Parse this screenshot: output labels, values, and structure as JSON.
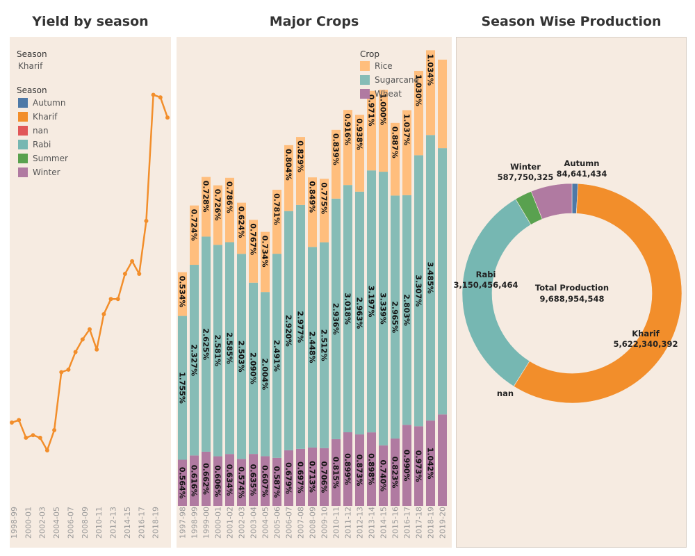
{
  "titles": {
    "yield": "Yield by season",
    "crops": "Major Crops",
    "season": "Season Wise Production"
  },
  "yield_filter": {
    "label": "Season",
    "value": "Kharif"
  },
  "season_legend": {
    "title": "Season",
    "items": [
      {
        "label": "Autumn",
        "color": "#4e79a7"
      },
      {
        "label": "Kharif",
        "color": "#f28e2b"
      },
      {
        "label": "nan",
        "color": "#e15759"
      },
      {
        "label": "Rabi",
        "color": "#76b7b2"
      },
      {
        "label": "Summer",
        "color": "#59a14f"
      },
      {
        "label": "Winter",
        "color": "#b07aa1"
      }
    ]
  },
  "crop_legend": {
    "title": "Crop",
    "items": [
      {
        "label": "Rice",
        "color": "#ffbe7d"
      },
      {
        "label": "Sugarcane",
        "color": "#86bcb6"
      },
      {
        "label": "Wheat",
        "color": "#b07aa1"
      }
    ]
  },
  "donut_center": {
    "label": "Total Production",
    "value": "9,688,954,548"
  },
  "chart_data": [
    {
      "type": "line",
      "title": "Yield by season",
      "series_name": "Kharif",
      "color": "#f28e2b",
      "x_ticks": [
        "1998-99",
        "2000-01",
        "2002-03",
        "2004-05",
        "2006-07",
        "2008-09",
        "2010-11",
        "2012-13",
        "2014-15",
        "2016-17",
        "2018-19"
      ],
      "values": [
        0.27,
        0.28,
        0.21,
        0.22,
        0.21,
        0.16,
        0.24,
        0.47,
        0.48,
        0.55,
        0.6,
        0.64,
        0.56,
        0.7,
        0.76,
        0.76,
        0.86,
        0.91,
        0.86,
        1.07,
        1.57,
        1.56,
        1.48
      ],
      "ylim": [
        0,
        1.8
      ]
    },
    {
      "type": "bar",
      "stacked": true,
      "title": "Major Crops",
      "categories": [
        "1997-98",
        "1998-99",
        "1999-00",
        "2000-01",
        "2001-02",
        "2002-03",
        "2003-04",
        "2004-05",
        "2005-06",
        "2006-07",
        "2007-08",
        "2008-09",
        "2009-10",
        "2010-11",
        "2011-12",
        "2012-13",
        "2013-14",
        "2014-15",
        "2015-16",
        "2016-17",
        "2017-18",
        "2018-19",
        "2019-20"
      ],
      "series": [
        {
          "name": "Wheat",
          "color": "#b07aa1",
          "values": [
            0.564,
            0.616,
            0.662,
            0.606,
            0.634,
            0.574,
            0.635,
            0.607,
            0.587,
            0.679,
            0.697,
            0.713,
            0.706,
            0.815,
            0.899,
            0.873,
            0.898,
            0.74,
            0.823,
            0.99,
            0.973,
            1.042,
            1.117
          ],
          "labels": [
            "0.564%",
            "0.616%",
            "0.662%",
            "0.606%",
            "0.634%",
            "0.574%",
            "0.635%",
            "0.607%",
            "0.587%",
            "0.679%",
            "0.697%",
            "0.713%",
            "0.706%",
            "0.815%",
            "0.899%",
            "0.873%",
            "0.898%",
            "0.740%",
            "0.823%",
            "0.990%",
            "0.973%",
            "1.042%",
            ""
          ]
        },
        {
          "name": "Sugarcane",
          "color": "#86bcb6",
          "values": [
            1.755,
            2.327,
            2.625,
            2.581,
            2.585,
            2.503,
            2.09,
            2.004,
            2.491,
            2.92,
            2.977,
            2.448,
            2.512,
            2.936,
            3.018,
            2.963,
            3.197,
            3.339,
            2.965,
            2.803,
            3.307,
            3.485,
            3.25
          ],
          "labels": [
            "1.755%",
            "2.327%",
            "2.625%",
            "2.581%",
            "2.585%",
            "2.503%",
            "2.090%",
            "2.004%",
            "2.491%",
            "2.920%",
            "2.977%",
            "2.448%",
            "2.512%",
            "2.936%",
            "3.018%",
            "2.963%",
            "3.197%",
            "3.339%",
            "2.965%",
            "2.803%",
            "3.307%",
            "3.485%",
            ""
          ]
        },
        {
          "name": "Rice",
          "color": "#ffbe7d",
          "values": [
            0.534,
            0.724,
            0.728,
            0.726,
            0.786,
            0.624,
            0.767,
            0.734,
            0.781,
            0.804,
            0.829,
            0.849,
            0.775,
            0.839,
            0.916,
            0.938,
            0.971,
            1.0,
            0.887,
            1.037,
            1.03,
            1.034,
            1.08
          ],
          "labels": [
            "0.534%",
            "0.724%",
            "0.728%",
            "0.726%",
            "0.786%",
            "0.624%",
            "0.767%",
            "0.734%",
            "0.781%",
            "0.804%",
            "0.829%",
            "0.849%",
            "0.775%",
            "0.839%",
            "0.916%",
            "0.938%",
            "0.971%",
            "1.000%",
            "0.887%",
            "1.037%",
            "1.030%",
            "1.034%",
            ""
          ]
        }
      ],
      "ylim": [
        0,
        5.6
      ]
    },
    {
      "type": "pie",
      "donut": true,
      "title": "Season Wise Production",
      "slices": [
        {
          "name": "Autumn",
          "value": 84641434,
          "label": "84,641,434",
          "color": "#4e79a7"
        },
        {
          "name": "Kharif",
          "value": 5622340392,
          "label": "5,622,340,392",
          "color": "#f28e2b"
        },
        {
          "name": "nan",
          "value": 0,
          "label": "",
          "color": "#e15759"
        },
        {
          "name": "Rabi",
          "value": 3150456464,
          "label": "3,150,456,464",
          "color": "#76b7b2"
        },
        {
          "name": "Summer",
          "value": 243765933,
          "label": "",
          "color": "#59a14f"
        },
        {
          "name": "Winter",
          "value": 587750325,
          "label": "587,750,325",
          "color": "#b07aa1"
        }
      ]
    }
  ]
}
